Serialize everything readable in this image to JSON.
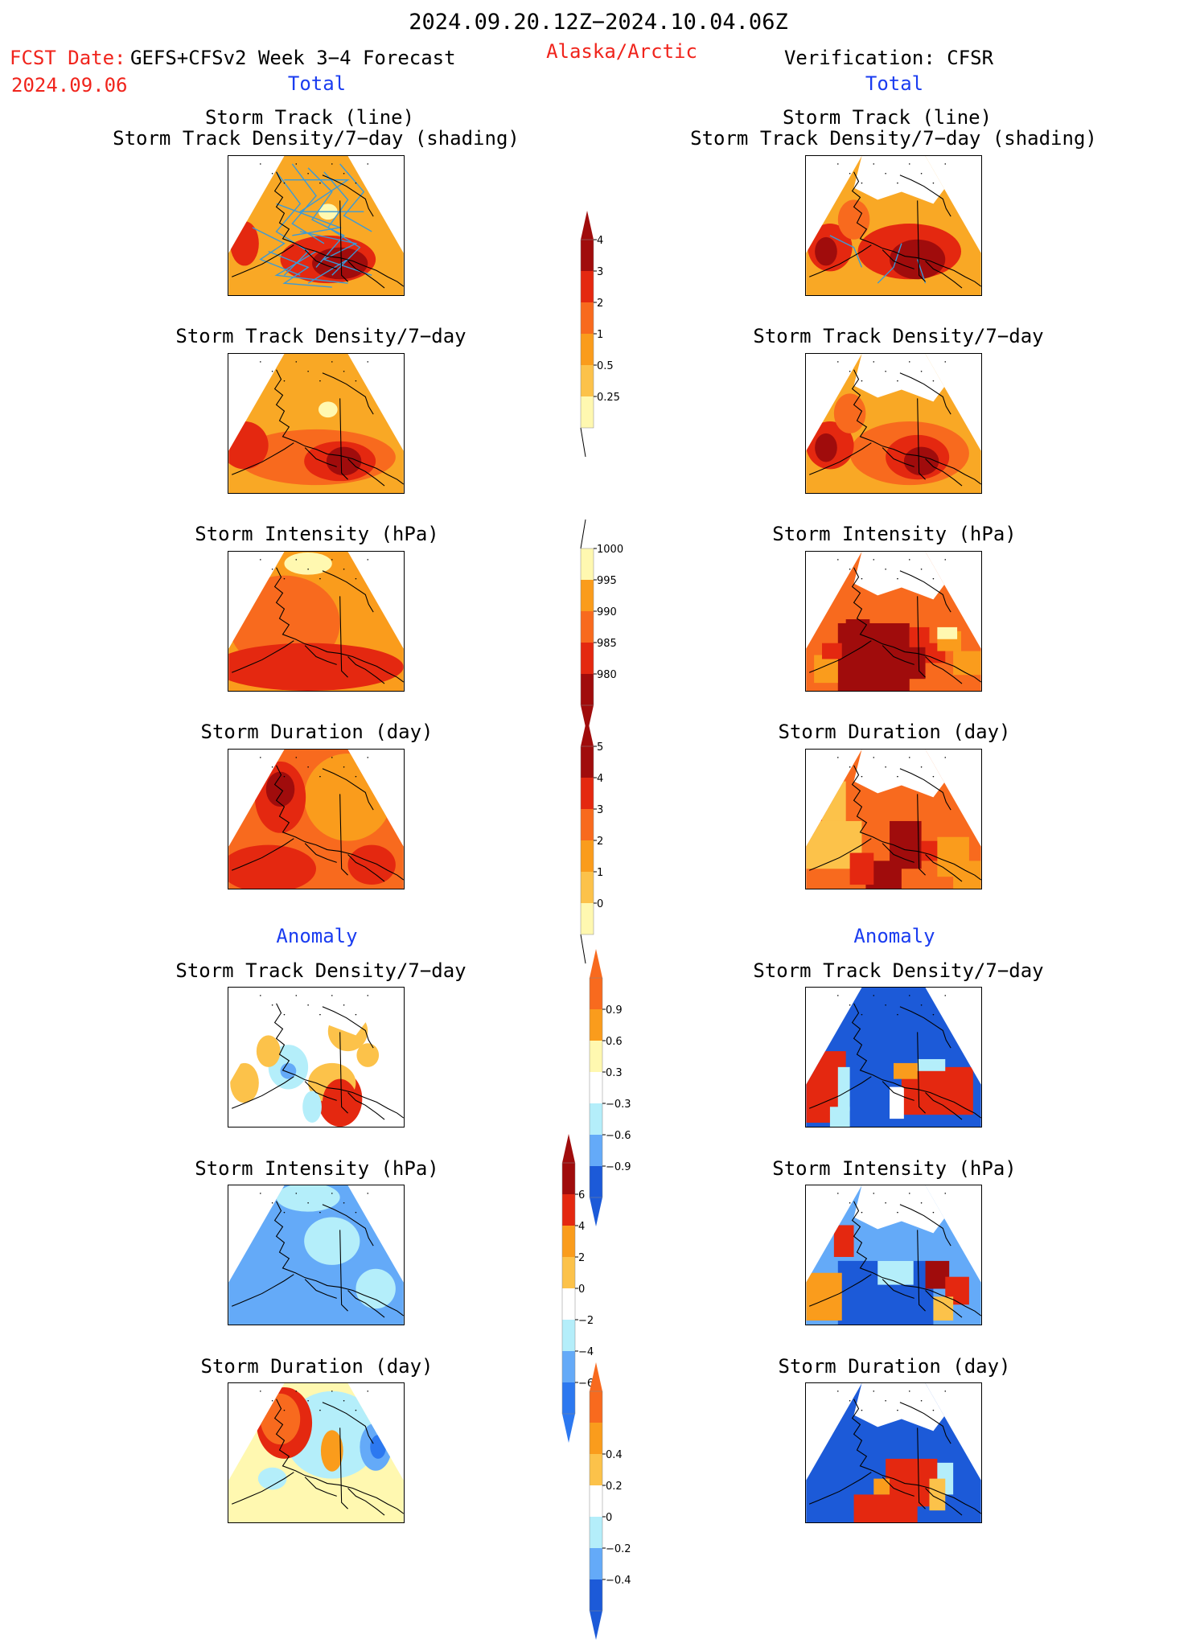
{
  "header": {
    "date_range": "2024.09.20.12Z−2024.10.04.06Z",
    "fcst_label": "FCST Date:",
    "fcst_date": "2024.09.06",
    "model": "GEFS+CFSv2 Week 3−4 Forecast",
    "region": "Alaska/Arctic",
    "verification": "Verification: CFSR"
  },
  "sections": {
    "total_left": "Total",
    "total_right": "Total",
    "anomaly_left": "Anomaly",
    "anomaly_right": "Anomaly"
  },
  "titles": {
    "track_line": "Storm Track (line)",
    "track_shading": "Storm Track Density/7−day (shading)",
    "density": "Storm Track Density/7−day",
    "intensity": "Storm Intensity (hPa)",
    "duration": "Storm Duration (day)"
  },
  "colorbars": {
    "density_total": [
      "0.25",
      "0.5",
      "1",
      "2",
      "3",
      "4"
    ],
    "intensity_total": [
      "1000",
      "995",
      "990",
      "985",
      "980"
    ],
    "duration_total": [
      "0",
      "1",
      "2",
      "3",
      "4",
      "5"
    ],
    "density_anom": [
      "−0.9",
      "−0.6",
      "−0.3",
      "0.3",
      "0.6",
      "0.9"
    ],
    "intensity_anom": [
      "−6",
      "−4",
      "−2",
      "0",
      "2",
      "4",
      "6"
    ],
    "duration_anom": [
      "−0.4",
      "−0.2",
      "0",
      "0.2",
      "0.4"
    ]
  },
  "colors": {
    "pale_yellow": "#fff8b0",
    "light_orange": "#fcc24a",
    "orange": "#fa9c1c",
    "dark_orange": "#f86a1e",
    "red": "#e42810",
    "dark_red": "#a00c0c",
    "light_blue": "#b4eefa",
    "mid_blue": "#64aaf8",
    "blue": "#2c78f0",
    "dark_blue": "#1c5ad8",
    "track_line": "#3a9ad8"
  }
}
